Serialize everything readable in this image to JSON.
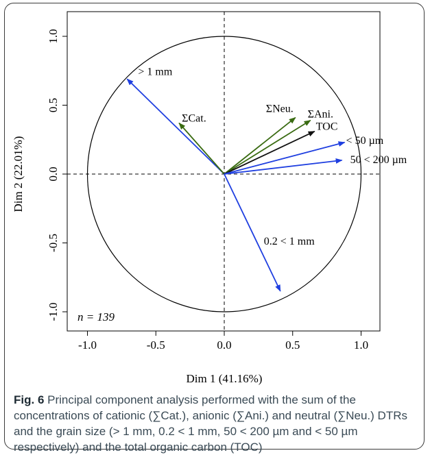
{
  "caption": {
    "label": "Fig. 6",
    "text": "Principal component analysis performed with the sum of the concentrations of cationic (∑Cat.), anionic (∑Ani.) and neutral (∑Neu.) DTRs and the grain size (> 1 mm, 0.2 < 1 mm, 50 < 200 µm and < 50 µm respectively) and the total organic carbon (TOC)"
  },
  "chart_data": {
    "type": "pca-correlation-circle",
    "title": "",
    "xlabel": "Dim 1 (41.16%)",
    "ylabel": "Dim 2 (22.01%)",
    "xlim": [
      -1.0,
      1.0
    ],
    "ylim": [
      -1.0,
      1.0
    ],
    "xticks": [
      "-1.0",
      "-0.5",
      "0.0",
      "0.5",
      "1.0"
    ],
    "yticks": [
      "-1.0",
      "-0.5",
      "0.0",
      "0.5",
      "1.0"
    ],
    "annotation": {
      "var": "n",
      "text": " = 139"
    },
    "unit_circle": true,
    "zero_lines": "dashed",
    "vectors": [
      {
        "label": "> 1 mm",
        "x": -0.71,
        "y": 0.69,
        "color": "#1f3fe0"
      },
      {
        "label": "ΣCat.",
        "x": -0.33,
        "y": 0.37,
        "color": "#3a6b12"
      },
      {
        "label": "ΣNeu.",
        "x": 0.52,
        "y": 0.41,
        "color": "#3a6b12"
      },
      {
        "label": "ΣAni.",
        "x": 0.63,
        "y": 0.39,
        "color": "#3a6b12"
      },
      {
        "label": "TOC",
        "x": 0.66,
        "y": 0.31,
        "color": "#111111"
      },
      {
        "label": "< 50 µm",
        "x": 0.88,
        "y": 0.23,
        "color": "#1f3fe0"
      },
      {
        "label": "50 < 200 µm",
        "x": 0.86,
        "y": 0.1,
        "color": "#1f3fe0"
      },
      {
        "label": "0.2 < 1 mm",
        "x": 0.41,
        "y": -0.85,
        "color": "#1f3fe0"
      }
    ]
  }
}
